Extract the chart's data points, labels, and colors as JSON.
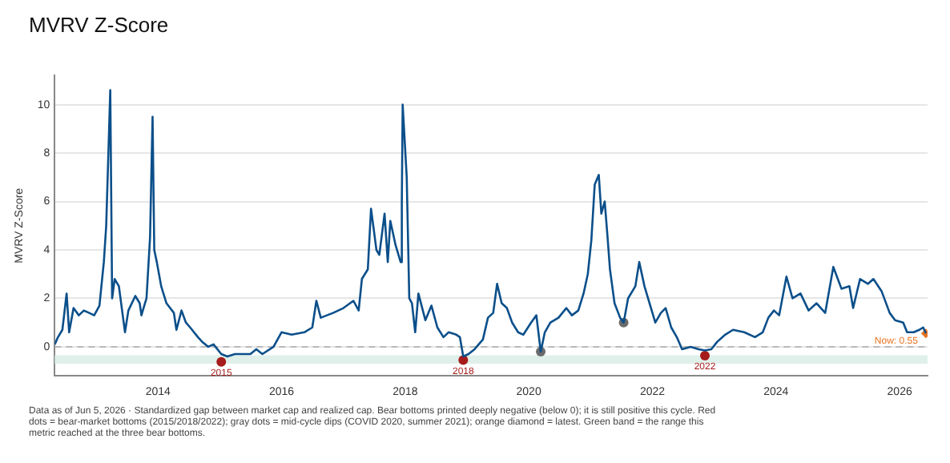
{
  "chart_data": {
    "type": "line",
    "title": "MVRV Z-Score",
    "ylabel": "MVRV Z-Score",
    "annotations": [
      {
        "text": "2015",
        "x": "2015-01-10",
        "y": -0.62
      },
      {
        "text": "2018",
        "x": "2018-12-10",
        "y": -0.55
      },
      {
        "text": "2022",
        "x": "2022-11-07",
        "y": -0.37
      },
      "Data as of Jun 5, 2026 · Standardized gap between market cap and realized cap. Bear bottoms printed deeply negative (below 0); it is still positive this cycle. Red dots = bear-market bottoms (2015/2018/2022); gray dots = mid-cycle dips (COVID 2020, summer 2021); orange diamond = latest. Green band = the range this metric reached at the three bear bottoms."
    ],
    "xlim": [
      "2012-05",
      "2026-06-15"
    ],
    "xticks": [
      "2014",
      "2016",
      "2018",
      "2020",
      "2022",
      "2024",
      "2026"
    ],
    "ylim": [
      -1.2,
      11.2
    ],
    "yticks": [
      0,
      2,
      4,
      6,
      8,
      10
    ],
    "grid": "y",
    "legend": false,
    "bands": [
      {
        "axis": "y",
        "from": -0.7,
        "to": -0.35,
        "color": "#dff0ea"
      }
    ],
    "ref_lines": [
      {
        "axis": "y",
        "value": 0,
        "color": "#aaaaaa",
        "line_style": "dashed"
      }
    ],
    "series": [
      {
        "color": "#0b4f8a",
        "marker": "none",
        "line_style": "solid",
        "x": [
          "2012-05-01",
          "2012-05-20",
          "2012-06-15",
          "2012-07-10",
          "2012-07-25",
          "2012-08-20",
          "2012-09-20",
          "2012-10-20",
          "2012-11-20",
          "2012-12-20",
          "2013-01-20",
          "2013-02-15",
          "2013-03-01",
          "2013-03-25",
          "2013-04-05",
          "2013-04-20",
          "2013-05-15",
          "2013-06-20",
          "2013-07-10",
          "2013-08-20",
          "2013-09-15",
          "2013-09-25",
          "2013-10-25",
          "2013-11-15",
          "2013-11-30",
          "2013-12-10",
          "2013-12-25",
          "2014-01-20",
          "2014-02-20",
          "2014-04-05",
          "2014-04-20",
          "2014-05-20",
          "2014-06-15",
          "2014-07-10",
          "2014-08-25",
          "2014-09-20",
          "2014-10-25",
          "2014-11-25",
          "2015-01-10",
          "2015-02-15",
          "2015-04-01",
          "2015-07-01",
          "2015-08-05",
          "2015-09-10",
          "2015-11-15",
          "2016-01-01",
          "2016-03-01",
          "2016-05-15",
          "2016-07-01",
          "2016-07-25",
          "2016-08-20",
          "2016-11-01",
          "2017-01-01",
          "2017-03-01",
          "2017-04-01",
          "2017-04-20",
          "2017-05-25",
          "2017-06-13",
          "2017-07-15",
          "2017-08-01",
          "2017-09-01",
          "2017-09-20",
          "2017-10-05",
          "2017-11-05",
          "2017-12-05",
          "2017-12-12",
          "2017-12-17",
          "2018-01-10",
          "2018-01-25",
          "2018-02-10",
          "2018-03-01",
          "2018-03-20",
          "2018-04-30",
          "2018-06-05",
          "2018-07-10",
          "2018-08-15",
          "2018-09-15",
          "2018-10-30",
          "2018-11-20",
          "2018-12-10",
          "2019-01-10",
          "2019-02-15",
          "2019-04-05",
          "2019-05-05",
          "2019-06-05",
          "2019-06-28",
          "2019-07-25",
          "2019-08-25",
          "2019-09-25",
          "2019-10-30",
          "2019-11-30",
          "2020-01-15",
          "2020-02-15",
          "2020-03-12",
          "2020-04-05",
          "2020-05-08",
          "2020-06-25",
          "2020-08-10",
          "2020-09-12",
          "2020-10-20",
          "2020-11-20",
          "2020-12-15",
          "2021-01-05",
          "2021-01-25",
          "2021-02-18",
          "2021-03-05",
          "2021-03-25",
          "2021-04-10",
          "2021-04-25",
          "2021-05-22",
          "2021-06-24",
          "2021-07-15",
          "2021-08-10",
          "2021-09-22",
          "2021-10-15",
          "2021-11-15",
          "2021-12-15",
          "2022-01-18",
          "2022-02-20",
          "2022-03-20",
          "2022-04-22",
          "2022-05-25",
          "2022-06-25",
          "2022-08-15",
          "2022-10-01",
          "2022-11-07",
          "2022-12-15",
          "2023-01-18",
          "2023-03-07",
          "2023-04-22",
          "2023-06-28",
          "2023-08-30",
          "2023-10-15",
          "2023-11-17",
          "2023-12-20",
          "2024-01-20",
          "2024-03-03",
          "2024-04-08",
          "2024-05-25",
          "2024-07-12",
          "2024-08-28",
          "2024-10-18",
          "2024-12-05",
          "2025-01-22",
          "2025-03-10",
          "2025-04-01",
          "2025-05-12",
          "2025-06-28",
          "2025-07-30",
          "2025-09-16",
          "2025-11-03",
          "2025-12-05",
          "2026-01-22",
          "2026-02-14",
          "2026-03-25",
          "2026-04-27",
          "2026-05-20",
          "2026-06-05"
        ],
        "values": [
          0.1,
          0.4,
          0.7,
          2.2,
          0.6,
          1.6,
          1.3,
          1.5,
          1.4,
          1.3,
          1.7,
          3.5,
          5.0,
          10.6,
          2.0,
          2.8,
          2.5,
          0.6,
          1.5,
          2.1,
          1.8,
          1.3,
          2.0,
          4.5,
          9.5,
          4.0,
          3.5,
          2.5,
          1.8,
          1.4,
          0.7,
          1.5,
          1.0,
          0.8,
          0.4,
          0.2,
          0.0,
          0.1,
          -0.3,
          -0.4,
          -0.3,
          -0.3,
          -0.1,
          -0.3,
          0.0,
          0.6,
          0.5,
          0.6,
          0.8,
          1.9,
          1.2,
          1.4,
          1.6,
          1.9,
          1.5,
          2.8,
          3.2,
          5.7,
          4.0,
          3.8,
          5.5,
          3.5,
          5.2,
          4.2,
          3.5,
          6.0,
          10.0,
          7.0,
          2.0,
          1.8,
          0.6,
          2.2,
          1.1,
          1.7,
          0.8,
          0.4,
          0.6,
          0.5,
          0.4,
          -0.4,
          -0.3,
          -0.1,
          0.3,
          1.2,
          1.4,
          2.6,
          1.8,
          1.6,
          1.0,
          0.6,
          0.5,
          1.0,
          1.3,
          -0.2,
          0.6,
          1.0,
          1.2,
          1.6,
          1.3,
          1.5,
          2.2,
          3.0,
          4.4,
          6.7,
          7.1,
          5.5,
          6.0,
          4.6,
          3.2,
          1.8,
          1.2,
          1.0,
          2.0,
          2.5,
          3.5,
          2.5,
          1.8,
          1.0,
          1.4,
          1.6,
          0.8,
          0.4,
          -0.1,
          0.0,
          -0.1,
          -0.15,
          -0.1,
          0.2,
          0.5,
          0.7,
          0.6,
          0.4,
          0.6,
          1.2,
          1.5,
          1.3,
          2.9,
          2.0,
          2.2,
          1.5,
          1.8,
          1.4,
          3.3,
          2.4,
          2.5,
          1.6,
          2.8,
          2.6,
          2.8,
          2.3,
          1.4,
          1.1,
          1.0,
          0.6,
          0.6,
          0.7,
          0.8,
          0.55
        ]
      },
      {
        "type": "scatter",
        "color": "#a61b1b",
        "marker": "circle",
        "x": [
          "2015-01-10",
          "2018-12-10",
          "2022-11-07"
        ],
        "values": [
          -0.62,
          -0.55,
          -0.37
        ]
      },
      {
        "type": "scatter",
        "color": "#6b6b6b",
        "marker": "circle",
        "x": [
          "2020-03-12",
          "2021-07-15"
        ],
        "values": [
          -0.2,
          1.0
        ]
      },
      {
        "type": "scatter",
        "color": "#e8731f",
        "marker": "diamond",
        "x": [
          "2026-06-05"
        ],
        "values": [
          0.55
        ],
        "value_labels": [
          "Now: 0.55"
        ]
      }
    ]
  }
}
